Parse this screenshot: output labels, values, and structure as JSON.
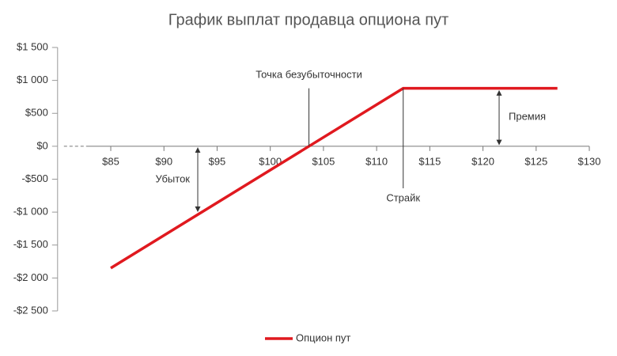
{
  "chart_data": {
    "type": "line",
    "title": "График выплат продавца опциона пут",
    "x": [
      85,
      112.5,
      127
    ],
    "series": [
      {
        "name": "Опцион пут",
        "color": "#e0191f",
        "values": [
          -1850,
          880,
          880
        ]
      }
    ],
    "xlim": [
      80,
      130
    ],
    "xticks": [
      {
        "value": 85,
        "label": "$85"
      },
      {
        "value": 90,
        "label": "$90"
      },
      {
        "value": 95,
        "label": "$95"
      },
      {
        "value": 100,
        "label": "$100"
      },
      {
        "value": 105,
        "label": "$105"
      },
      {
        "value": 110,
        "label": "$110"
      },
      {
        "value": 115,
        "label": "$115"
      },
      {
        "value": 120,
        "label": "$120"
      },
      {
        "value": 125,
        "label": "$125"
      },
      {
        "value": 130,
        "label": "$130"
      }
    ],
    "ylim": [
      -2500,
      1500
    ],
    "yticks": [
      {
        "value": 1500,
        "label": "$1 500"
      },
      {
        "value": 1000,
        "label": "$1 000"
      },
      {
        "value": 500,
        "label": "$500"
      },
      {
        "value": 0,
        "label": "$0"
      },
      {
        "value": -500,
        "label": "-$500"
      },
      {
        "value": -1000,
        "label": "-$1 000"
      },
      {
        "value": -1500,
        "label": "-$1 500"
      },
      {
        "value": -2000,
        "label": "-$2 000"
      },
      {
        "value": -2500,
        "label": "-$2 500"
      }
    ],
    "annotations": {
      "breakeven": "Точка безубыточности",
      "strike": "Страйк",
      "premium": "Премия",
      "loss": "Убыток"
    },
    "legend": "bottom"
  }
}
